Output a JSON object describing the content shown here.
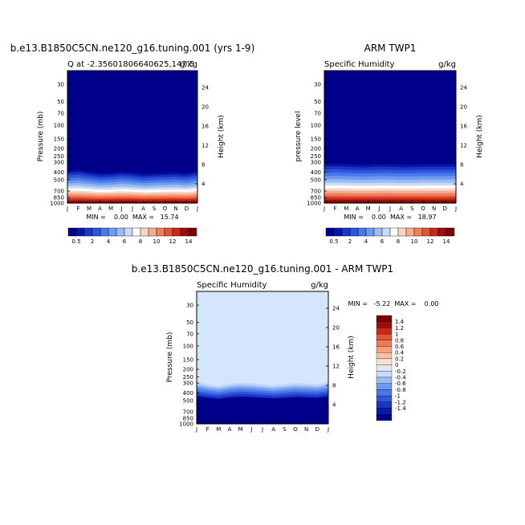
{
  "panel_a": {
    "title": "b.e13.B1850C5CN.ne120_g16.tuning.001 (yrs 1-9)",
    "subtitle_left": "Q at -2.35601806640625,147.5",
    "subtitle_right": "g/kg",
    "ylabel_left": "Pressure (mb)",
    "ylabel_right": "Height (km)",
    "stats": "MIN =    0.00  MAX =   15.74"
  },
  "panel_b": {
    "title": "ARM TWP1",
    "subtitle_left": "Specific Humidity",
    "subtitle_right": "g/kg",
    "ylabel_left": "pressure level",
    "ylabel_right": "Height (km)",
    "stats": "MIN =    0.00  MAX =   18.97"
  },
  "panel_c": {
    "title": "b.e13.B1850C5CN.ne120_g16.tuning.001 - ARM TWP1",
    "subtitle_left": "Specific Humidity",
    "subtitle_right": "g/kg",
    "ylabel_left": "Pressure (mb)",
    "ylabel_right": "Height (km)",
    "stats": "MIN =   -5.22  MAX =    0.00"
  },
  "colors": {
    "abs_scale": [
      "#00008b",
      "#0a16a8",
      "#1a35c8",
      "#2e55dc",
      "#4a78e8",
      "#6d9af0",
      "#9bbcf3",
      "#c8dcf8",
      "#ffffff",
      "#f8d6c3",
      "#f5ac8c",
      "#ef8060",
      "#e35536",
      "#c82a17",
      "#a00c0c",
      "#7a0000"
    ],
    "diff_scale": [
      "#00008b",
      "#0a1ba5",
      "#1a35c8",
      "#2e55dc",
      "#4a78e8",
      "#6d9af0",
      "#9bbcf3",
      "#c8dcf8",
      "#d9e8fb",
      "#fbe0d0",
      "#f8c2a6",
      "#f5a07e",
      "#ef7c58",
      "#e35536",
      "#c82a17",
      "#a00c0c",
      "#7a0000"
    ]
  },
  "chart_data": [
    {
      "type": "heatmap",
      "name": "model",
      "x": [
        "J",
        "F",
        "M",
        "A",
        "M",
        "J",
        "J",
        "A",
        "S",
        "O",
        "N",
        "D",
        "J"
      ],
      "y_pressure_ticks": [
        30,
        50,
        70,
        100,
        150,
        200,
        250,
        300,
        400,
        500,
        700,
        850,
        1000
      ],
      "y_height_ticks": [
        4,
        8,
        12,
        16,
        20,
        24
      ],
      "ylim_mb": [
        1000,
        20
      ],
      "contour_top_mb": [
        370,
        360,
        380,
        400,
        395,
        380,
        390,
        410,
        400,
        395,
        390,
        400,
        370
      ],
      "colorbar": {
        "levels": [
          "0.5",
          "2",
          "4",
          "6",
          "8",
          "10",
          "12",
          "14"
        ]
      }
    },
    {
      "type": "heatmap",
      "name": "obs",
      "x": [
        "J",
        "F",
        "M",
        "A",
        "M",
        "J",
        "J",
        "A",
        "S",
        "O",
        "N",
        "D",
        "J"
      ],
      "y_pressure_ticks": [
        30,
        50,
        70,
        100,
        150,
        200,
        250,
        300,
        400,
        500,
        700,
        850,
        1000
      ],
      "y_height_ticks": [
        4,
        8,
        12,
        16,
        20,
        24
      ],
      "ylim_mb": [
        1000,
        20
      ],
      "contour_top_mb": [
        300,
        295,
        300,
        305,
        305,
        300,
        300,
        305,
        305,
        300,
        300,
        300,
        300
      ],
      "colorbar": {
        "levels": [
          "0.5",
          "2",
          "4",
          "6",
          "8",
          "10",
          "12",
          "14"
        ]
      }
    },
    {
      "type": "heatmap",
      "name": "difference",
      "x": [
        "J",
        "F",
        "M",
        "A",
        "M",
        "J",
        "J",
        "A",
        "S",
        "O",
        "N",
        "D",
        "J"
      ],
      "y_pressure_ticks": [
        30,
        50,
        70,
        100,
        150,
        200,
        250,
        300,
        400,
        500,
        700,
        850,
        1000
      ],
      "y_height_ticks": [
        4,
        8,
        12,
        16,
        20,
        24
      ],
      "ylim_mb": [
        1000,
        20
      ],
      "contour_top_mb": [
        290,
        310,
        325,
        305,
        295,
        300,
        310,
        320,
        310,
        300,
        305,
        310,
        290
      ],
      "colorbar": {
        "levels": [
          "1.4",
          "1.2",
          "1",
          "0.8",
          "0.6",
          "0.4",
          "0.2",
          "0",
          "-0.2",
          "-0.4",
          "-0.6",
          "-0.8",
          "-1",
          "-1.2",
          "-1.4"
        ]
      }
    }
  ]
}
